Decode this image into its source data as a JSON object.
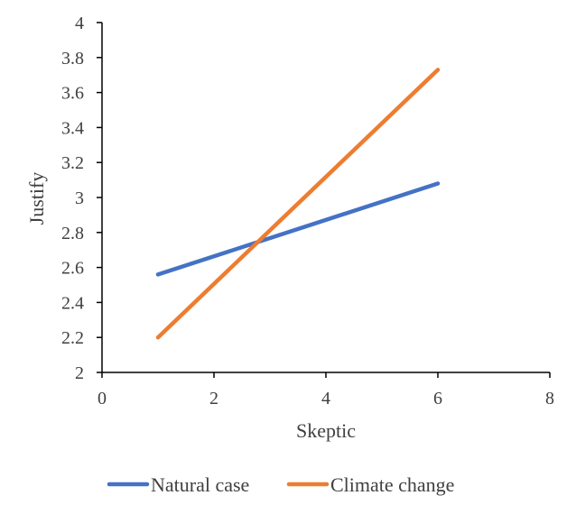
{
  "chart_data": {
    "type": "line",
    "title": "",
    "xlabel": "Skeptic",
    "ylabel": "Justify",
    "xlim": [
      0,
      8
    ],
    "ylim": [
      2,
      4
    ],
    "x_ticks": [
      0,
      2,
      4,
      6,
      8
    ],
    "y_ticks": [
      2,
      2.2,
      2.4,
      2.6,
      2.8,
      3,
      3.2,
      3.4,
      3.6,
      3.8,
      4
    ],
    "x_tick_labels": [
      "0",
      "2",
      "4",
      "6",
      "8"
    ],
    "y_tick_labels": [
      "2",
      "2.2",
      "2.4",
      "2.6",
      "2.8",
      "3",
      "3.2",
      "3.4",
      "3.6",
      "3.8",
      "4"
    ],
    "grid": false,
    "legend_position": "bottom",
    "series": [
      {
        "name": "Natural case",
        "color": "#4472C4",
        "x": [
          1,
          6
        ],
        "y": [
          2.56,
          3.08
        ]
      },
      {
        "name": "Climate change",
        "color": "#ED7D31",
        "x": [
          1,
          6
        ],
        "y": [
          2.2,
          3.73
        ]
      }
    ]
  }
}
